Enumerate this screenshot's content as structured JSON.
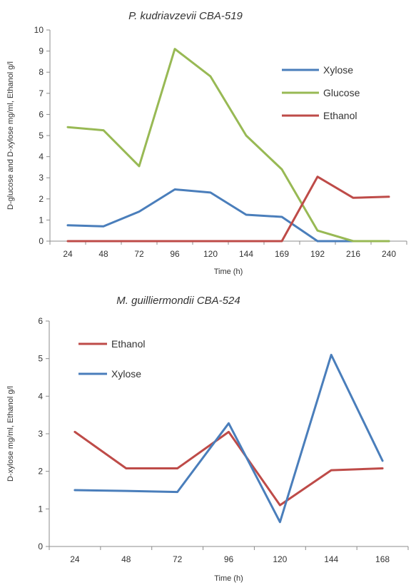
{
  "chart_data": [
    {
      "type": "line",
      "title": "P. kudriavzevii CBA-519",
      "xlabel": "Time (h)",
      "ylabel": "D-glucose and D-xylose mg/ml, Ethanol g/l",
      "categories": [
        "24",
        "48",
        "72",
        "96",
        "120",
        "144",
        "169",
        "192",
        "216",
        "240"
      ],
      "ylim": [
        0,
        10
      ],
      "yticks": [
        "0",
        "1",
        "2",
        "3",
        "4",
        "5",
        "6",
        "7",
        "8",
        "9",
        "10"
      ],
      "grid": false,
      "legend_position": "right",
      "series": [
        {
          "name": "Xylose",
          "color": "#4a7ebb",
          "values": [
            0.75,
            0.7,
            1.4,
            2.45,
            2.3,
            1.25,
            1.15,
            0.0,
            0.0,
            0.0
          ]
        },
        {
          "name": "Glucose",
          "color": "#98b954",
          "values": [
            5.4,
            5.25,
            3.55,
            9.1,
            7.8,
            5.0,
            3.4,
            0.5,
            0.0,
            0.0
          ]
        },
        {
          "name": "Ethanol",
          "color": "#be4b48",
          "values": [
            0,
            0,
            0,
            0,
            0,
            0,
            0,
            3.05,
            2.05,
            2.1
          ]
        }
      ]
    },
    {
      "type": "line",
      "title": "M. guilliermondii CBA-524",
      "xlabel": "Time (h)",
      "ylabel": "D-xylose mg/ml, Ethanol g/l",
      "categories": [
        "24",
        "48",
        "72",
        "96",
        "120",
        "144",
        "168"
      ],
      "ylim": [
        0,
        6
      ],
      "yticks": [
        "0",
        "1",
        "2",
        "3",
        "4",
        "5",
        "6"
      ],
      "grid": false,
      "legend_position": "top-left",
      "series": [
        {
          "name": "Ethanol",
          "color": "#be4b48",
          "values": [
            3.05,
            2.08,
            2.08,
            3.05,
            1.1,
            2.03,
            2.08
          ]
        },
        {
          "name": "Xylose",
          "color": "#4a7ebb",
          "values": [
            1.5,
            1.48,
            1.45,
            3.28,
            0.65,
            5.1,
            2.28
          ]
        }
      ]
    }
  ]
}
